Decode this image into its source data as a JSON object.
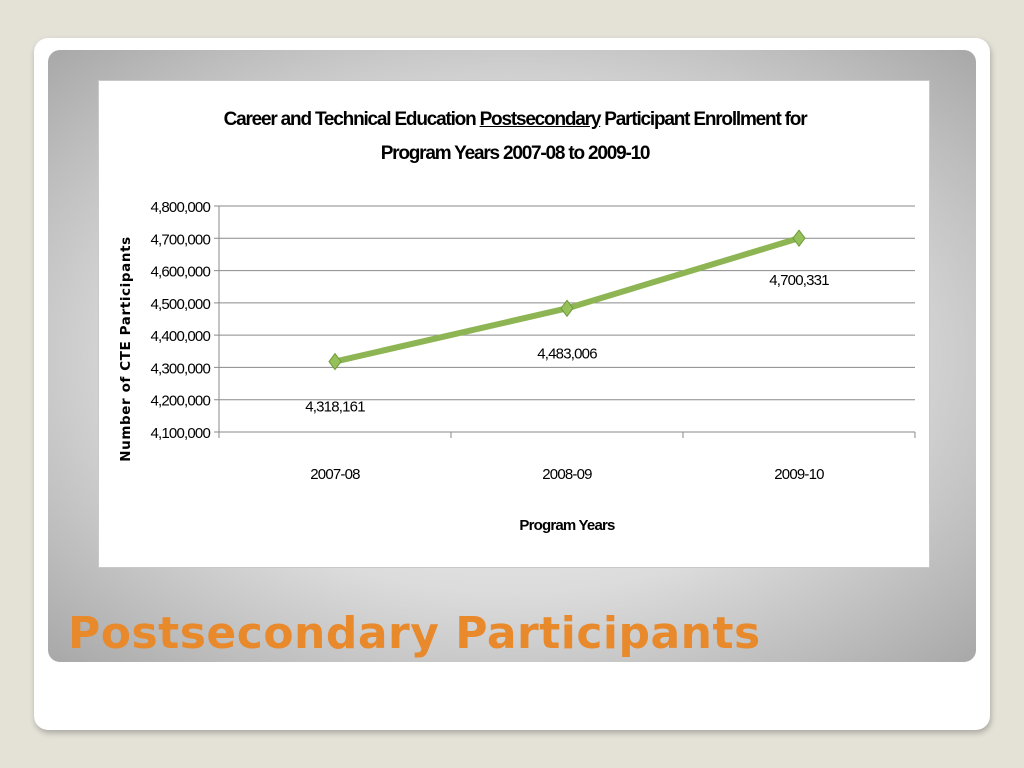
{
  "slide": {
    "title": "Postsecondary Participants"
  },
  "chart_data": {
    "type": "line",
    "title_parts": {
      "before": "Career and Technical Education ",
      "underlined": "Postsecondary",
      "after": " Participant Enrollment for",
      "line2": "Program Years 2007-08 to 2009-10"
    },
    "xlabel": "Program Years",
    "ylabel": "Number of CTE Participants",
    "categories": [
      "2007-08",
      "2008-09",
      "2009-10"
    ],
    "series": [
      {
        "values": [
          4318161,
          4483006,
          4700331
        ],
        "data_labels": [
          "4,318,161",
          "4,483,006",
          "4,700,331"
        ],
        "color": "#8db553"
      }
    ],
    "ylim": [
      4100000,
      4800000
    ],
    "yticks": [
      4100000,
      4200000,
      4300000,
      4400000,
      4500000,
      4600000,
      4700000,
      4800000
    ],
    "ytick_labels": [
      "4,100,000",
      "4,200,000",
      "4,300,000",
      "4,400,000",
      "4,500,000",
      "4,600,000",
      "4,700,000",
      "4,800,000"
    ],
    "grid": true,
    "marker": "diamond"
  }
}
